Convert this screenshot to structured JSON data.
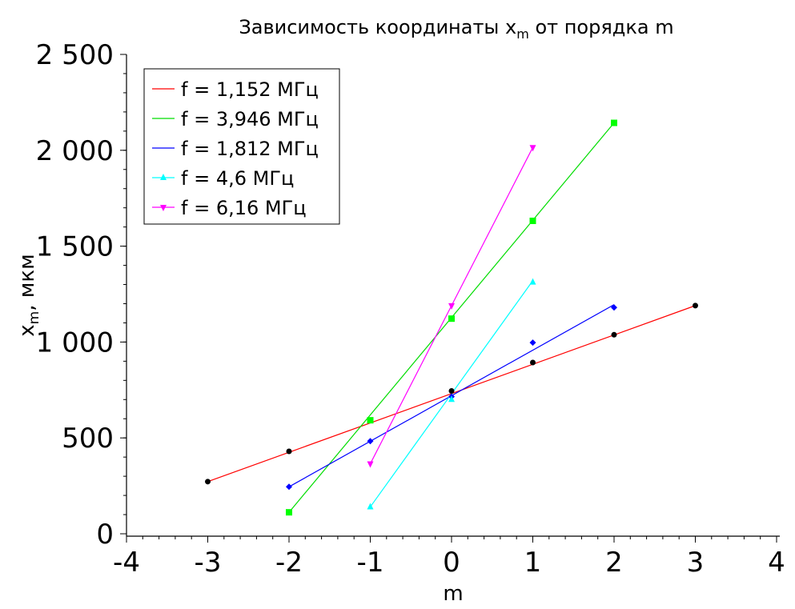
{
  "chart_data": {
    "type": "line",
    "title_main": "Зависимость координаты x",
    "title_sub": "m",
    "title_rest": " от порядка m",
    "xlabel": "m",
    "ylabel_main": "x",
    "ylabel_sub": "m",
    "ylabel_rest": ", мкм",
    "xlim": [
      -4,
      4
    ],
    "ylim": [
      0,
      2500
    ],
    "x_ticks": [
      "-4",
      "-3",
      "-2",
      "-1",
      "0",
      "1",
      "2",
      "3",
      "4"
    ],
    "y_ticks": [
      "0",
      "500",
      "1 000",
      "1 500",
      "2 000",
      "2 500"
    ],
    "legend_position": "top-left",
    "grid": false,
    "series": [
      {
        "name": "f = 1,152 МГц",
        "color": "#ff0000",
        "marker": "circle",
        "marker_color": "#000000",
        "points": [
          [
            -3,
            272
          ],
          [
            -2,
            430
          ],
          [
            0,
            745
          ],
          [
            1,
            893
          ],
          [
            2,
            1038
          ],
          [
            3,
            1190
          ]
        ],
        "fit": [
          [
            -3,
            272
          ],
          [
            3,
            1190
          ]
        ]
      },
      {
        "name": "f = 3,946 МГц",
        "color": "#00dd00",
        "marker": "square",
        "marker_color": "#00ff00",
        "points": [
          [
            -2,
            112
          ],
          [
            -1,
            592
          ],
          [
            0,
            1122
          ],
          [
            1,
            1632
          ],
          [
            2,
            2143
          ]
        ],
        "fit": [
          [
            -2,
            112
          ],
          [
            2,
            2143
          ]
        ]
      },
      {
        "name": "f = 1,812 МГц",
        "color": "#0000ff",
        "marker": "diamond",
        "marker_color": "#0000ff",
        "points": [
          [
            -2,
            245
          ],
          [
            -1,
            483
          ],
          [
            0,
            715
          ],
          [
            1,
            997
          ],
          [
            2,
            1180
          ]
        ],
        "fit": [
          [
            -2,
            245
          ],
          [
            2,
            1195
          ]
        ]
      },
      {
        "name": "f = 4,6 МГц",
        "color": "#00ffff",
        "marker": "triangle-up",
        "marker_color": "#00ffff",
        "points": [
          [
            -1,
            140
          ],
          [
            0,
            700
          ],
          [
            1,
            1312
          ]
        ],
        "fit": [
          [
            -1,
            140
          ],
          [
            1,
            1320
          ]
        ]
      },
      {
        "name": "f = 6,16 МГц",
        "color": "#ff00ff",
        "marker": "triangle-down",
        "marker_color": "#ff00ff",
        "points": [
          [
            -1,
            365
          ],
          [
            0,
            1190
          ],
          [
            1,
            2015
          ]
        ],
        "fit": [
          [
            -1,
            365
          ],
          [
            1,
            2015
          ]
        ]
      }
    ]
  }
}
